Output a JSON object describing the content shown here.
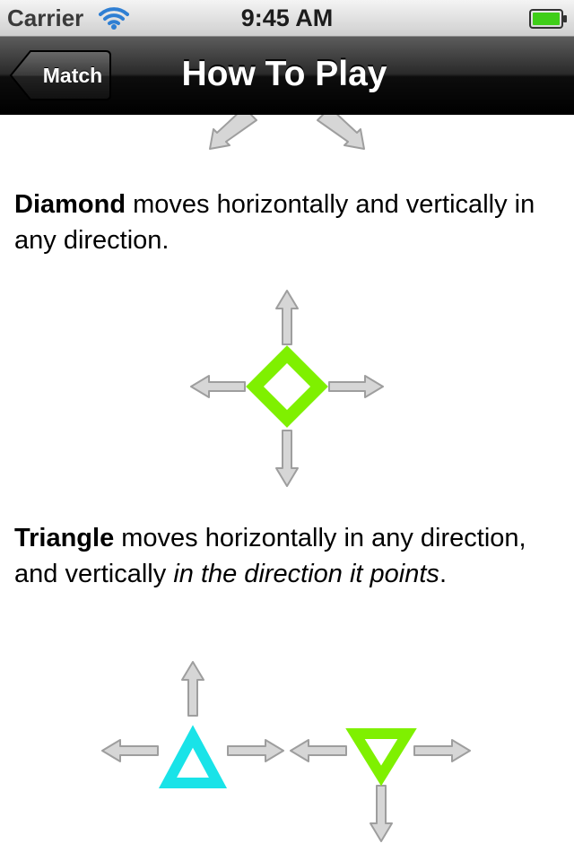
{
  "status_bar": {
    "carrier": "Carrier",
    "time": "9:45 AM",
    "icons": [
      "wifi-icon",
      "battery-icon"
    ]
  },
  "nav_bar": {
    "back_label": "Match",
    "title": "How To Play"
  },
  "colors": {
    "arrow_fill": "#d6d6d6",
    "arrow_stroke": "#9e9e9e",
    "diamond": "#7ff000",
    "triangle_up": "#19e3e8",
    "triangle_down": "#7ff000",
    "nav_bar": "#0d0d0d"
  },
  "sections": {
    "diamond": {
      "name": "Diamond",
      "text": " moves horizontally and vertically in any direction."
    },
    "triangle": {
      "name": "Triangle",
      "text_1": " moves horizontally in any direction, and vertically ",
      "text_italic": "in the direction it points",
      "text_2": "."
    }
  }
}
